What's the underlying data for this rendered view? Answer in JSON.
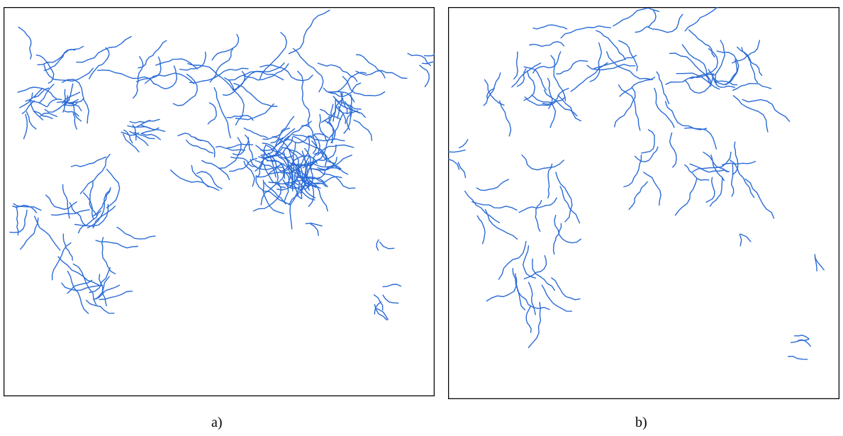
{
  "panels": [
    {
      "caption": "a)"
    },
    {
      "caption": "b)"
    }
  ]
}
